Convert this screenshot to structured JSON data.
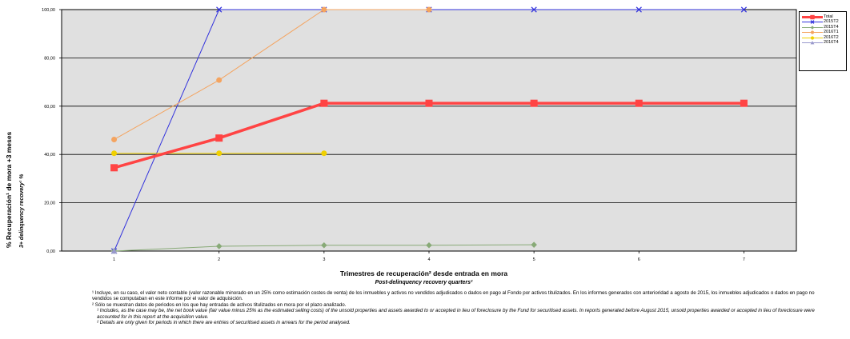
{
  "chart_data": {
    "type": "line",
    "ylabel": "% Recuperación¹ de mora +3 meses",
    "ylabel_en": "3+ delinquency recovery¹ %",
    "xlabel": "Trimestres de recuperación² desde entrada en mora",
    "xlabel_en": "Post-delinquency recovery quarters²",
    "x": [
      1,
      2,
      3,
      4,
      5,
      6,
      7
    ],
    "ylim": [
      0,
      100
    ],
    "yticks": [
      "0,00",
      "20,00",
      "40,00",
      "60,00",
      "80,00",
      "100,00"
    ],
    "grid": true,
    "plot_background": "#e0e0e0",
    "legend_position": "right",
    "series": [
      {
        "name": "Total",
        "color": "#ff4444",
        "marker": "square",
        "line_width": 3.5,
        "values": [
          34.5,
          46.8,
          61.2,
          61.2,
          61.2,
          61.2,
          61.2
        ]
      },
      {
        "name": "2015T2",
        "color": "#3333dd",
        "marker": "x",
        "line_width": 1,
        "values": [
          0,
          100,
          100,
          100,
          100,
          100,
          100
        ]
      },
      {
        "name": "2015T4",
        "color": "#88aa77",
        "marker": "diamond",
        "line_width": 1,
        "values": [
          0,
          2.0,
          2.4,
          2.4,
          2.6,
          null,
          null
        ]
      },
      {
        "name": "2016T1",
        "color": "#f4a460",
        "marker": "circle",
        "line_width": 1,
        "values": [
          46.2,
          70.8,
          100,
          100,
          null,
          null,
          null
        ]
      },
      {
        "name": "2016T2",
        "color": "#f0d000",
        "marker": "circle",
        "line_width": 1,
        "values": [
          40.5,
          40.5,
          40.5,
          null,
          null,
          null,
          null
        ]
      },
      {
        "name": "2016T4",
        "color": "#9999cc",
        "marker": "triangle",
        "line_width": 1,
        "values": [
          0,
          null,
          null,
          null,
          null,
          null,
          null
        ]
      }
    ]
  },
  "notes": {
    "n1_es": "¹ Incluye, en su caso, el valor neto contable (valor razonable minorado en un 25% como estimación costes de venta) de los inmuebles y activos no vendidos adjudicados o dados en pago al Fondo por activos titulizados. En los informes generados con anterioridad a agosto de 2015, los inmuebles adjudicados o dados en pago no vendidos se computaban en este informe por el valor de adquisición.",
    "n2_es": "² Sólo se muestran datos de periodos en los que hay entradas de activos titulizados en mora por el plazo analizado.",
    "n1_en": "¹ Includes, as the case may be, the net book value (fair value minus 25% as the estimated selling costs) of the unsold properties and assets awarded to or accepted in lieu of foreclosure by the Fund for securitised assets. In reports generated before August 2015, unsold properties awarded or accepted in lieu of foreclosure were accounted for in this report at the acquisition value.",
    "n2_en": "² Details are only given for periods in which there are entries of securitised assets in arrears for the period analysed."
  }
}
